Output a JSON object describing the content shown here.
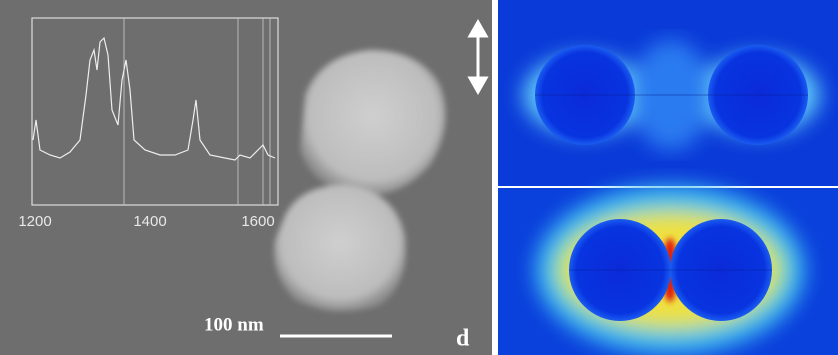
{
  "inset": {
    "xticks": [
      1200,
      1400,
      1600
    ]
  },
  "scale_bar": "100 nm",
  "panel_label": "d"
}
